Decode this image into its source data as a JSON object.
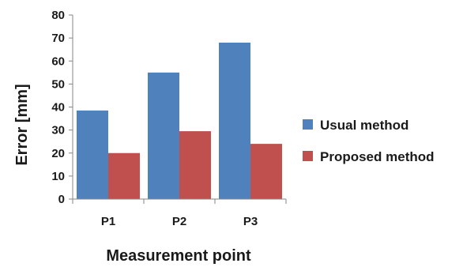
{
  "chart_data": {
    "type": "bar",
    "categories": [
      "P1",
      "P2",
      "P3"
    ],
    "series": [
      {
        "name": "Usual method",
        "values": [
          38.5,
          55,
          68
        ],
        "color": "#4f81bd"
      },
      {
        "name": "Proposed method",
        "values": [
          20,
          29.5,
          24
        ],
        "color": "#c0504d"
      }
    ],
    "xlabel": "Measurement point",
    "ylabel": "Error [mm]",
    "ylim": [
      0,
      80
    ],
    "yticks": [
      0,
      10,
      20,
      30,
      40,
      50,
      60,
      70,
      80
    ],
    "grid": false,
    "legend_position": "right"
  }
}
